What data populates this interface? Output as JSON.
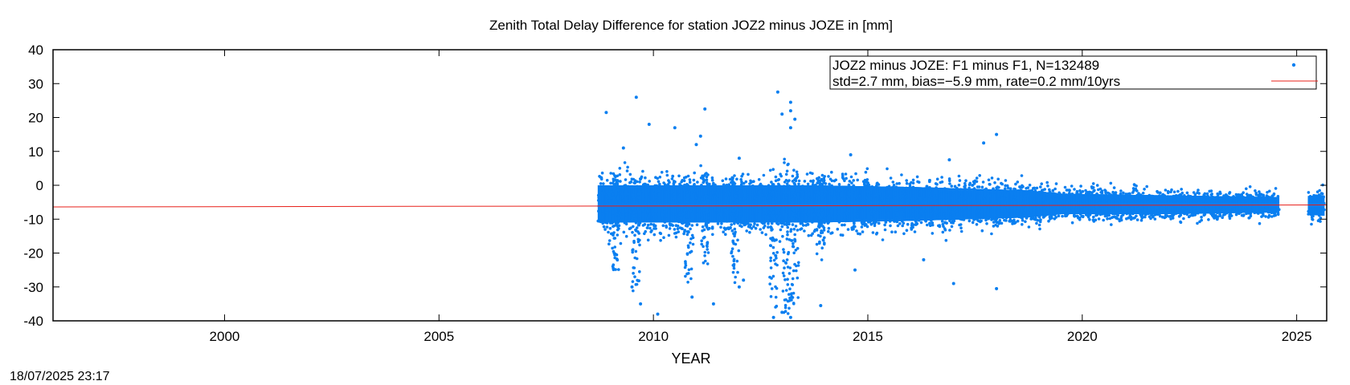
{
  "timestamp": "18/07/2025 23:17",
  "chart_data": {
    "type": "scatter",
    "title": "Zenith Total Delay Difference for station JOZ2 minus JOZE in [mm]",
    "xlabel": "YEAR",
    "ylabel": "",
    "xlim": [
      1996.0,
      2025.7
    ],
    "ylim": [
      -40,
      40
    ],
    "xticks": [
      2000,
      2005,
      2010,
      2015,
      2020,
      2025
    ],
    "yticks": [
      -40,
      -30,
      -20,
      -10,
      0,
      10,
      20,
      30,
      40
    ],
    "grid": false,
    "legend_position": "top-right",
    "legend": [
      "JOZ2 minus JOZE: F1 minus F1, N=132489",
      "std=2.7 mm, bias=−5.9 mm, rate=0.2 mm/10yrs"
    ],
    "series": [
      {
        "name": "JOZ2 minus JOZE: F1 minus F1, N=132489",
        "kind": "points",
        "color": "#0a7ff0",
        "data_span": [
          2008.7,
          2025.6
        ],
        "gaps": [
          [
            2024.55,
            2025.25
          ]
        ],
        "band": [
          {
            "x": 2008.7,
            "low": -11,
            "high": 0
          },
          {
            "x": 2011.0,
            "low": -11,
            "high": 0
          },
          {
            "x": 2013.6,
            "low": -11,
            "high": 0
          },
          {
            "x": 2016.0,
            "low": -10.5,
            "high": -0.5
          },
          {
            "x": 2018.7,
            "low": -9.5,
            "high": -1.5
          },
          {
            "x": 2019.5,
            "low": -8.5,
            "high": -2.5
          },
          {
            "x": 2022.0,
            "low": -8.5,
            "high": -3
          },
          {
            "x": 2024.5,
            "low": -8,
            "high": -3.5
          },
          {
            "x": 2025.6,
            "low": -9,
            "high": -3
          }
        ],
        "outliers": [
          [
            2008.9,
            21.5
          ],
          [
            2009.6,
            26
          ],
          [
            2009.9,
            18
          ],
          [
            2010.5,
            17
          ],
          [
            2011.2,
            22.5
          ],
          [
            2011.1,
            14.5
          ],
          [
            2012.9,
            27.5
          ],
          [
            2013.2,
            24.5
          ],
          [
            2013.2,
            22
          ],
          [
            2013.0,
            21
          ],
          [
            2013.3,
            19.5
          ],
          [
            2013.2,
            17
          ],
          [
            2017.7,
            12.5
          ],
          [
            2018.0,
            15
          ],
          [
            2011.0,
            12
          ],
          [
            2009.3,
            11
          ],
          [
            2012.0,
            8
          ],
          [
            2014.6,
            9
          ],
          [
            2016.9,
            7.5
          ],
          [
            2009.7,
            -35
          ],
          [
            2010.1,
            -38
          ],
          [
            2013.0,
            -37.5
          ],
          [
            2013.2,
            -39
          ],
          [
            2012.8,
            -39
          ],
          [
            2013.9,
            -35.5
          ],
          [
            2009.5,
            -30
          ],
          [
            2011.4,
            -35
          ],
          [
            2010.9,
            -33
          ],
          [
            2017.0,
            -29
          ],
          [
            2018.0,
            -30.5
          ],
          [
            2014.7,
            -25
          ],
          [
            2016.3,
            -22
          ],
          [
            2012.1,
            -28
          ],
          [
            2012.0,
            -30
          ]
        ],
        "spikes": [
          {
            "x": 2009.6,
            "low": -32,
            "high": 2
          },
          {
            "x": 2010.8,
            "low": -30,
            "high": 3
          },
          {
            "x": 2011.9,
            "low": -30,
            "high": 3
          },
          {
            "x": 2012.8,
            "low": -36,
            "high": 5
          },
          {
            "x": 2013.1,
            "low": -38,
            "high": 8
          },
          {
            "x": 2013.3,
            "low": -35,
            "high": 6
          },
          {
            "x": 2013.9,
            "low": -22,
            "high": 3
          },
          {
            "x": 2009.1,
            "low": -25,
            "high": 3
          },
          {
            "x": 2011.2,
            "low": -24,
            "high": 4
          }
        ]
      },
      {
        "name": "std=2.7 mm, bias=−5.9 mm, rate=0.2 mm/10yrs",
        "kind": "line",
        "color": "#e8201a",
        "x": [
          1996.0,
          2025.7
        ],
        "y": [
          -6.4,
          -5.8
        ]
      }
    ]
  }
}
